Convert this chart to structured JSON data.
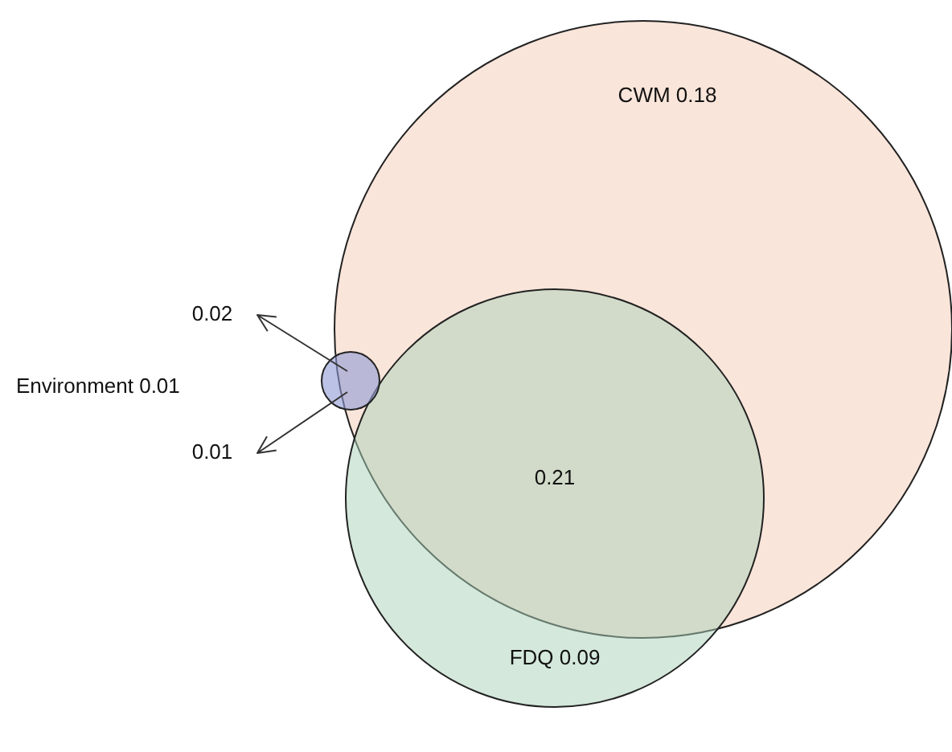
{
  "chart_data": {
    "type": "other",
    "categories": [
      "CWM",
      "FDQ",
      "Environment"
    ],
    "values": [
      0.18,
      0.09,
      0.01
    ],
    "colors": [
      "#f5cbb6",
      "#a9d1b8",
      "#8f99d6"
    ],
    "data_labels": true,
    "annotations": [
      "0.21",
      "0.02",
      "0.01"
    ]
  }
}
